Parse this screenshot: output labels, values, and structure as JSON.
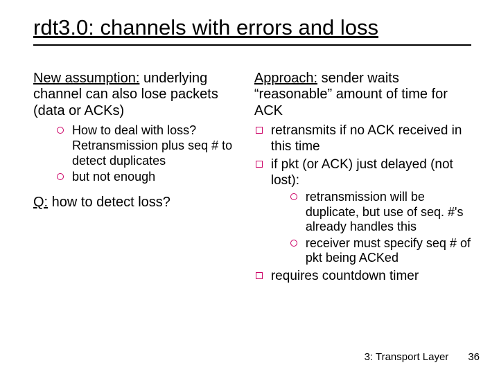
{
  "title": "rdt3.0: channels with errors and loss",
  "left": {
    "assumption_label": "New assumption:",
    "assumption_body": " underlying channel can also lose packets (data or ACKs)",
    "sub_items": [
      "How to deal with loss? Retransmission plus seq # to detect duplicates",
      "but not enough"
    ],
    "question_label": "Q:",
    "question_body": " how to detect loss?"
  },
  "right": {
    "approach_label": "Approach:",
    "approach_body": " sender waits “reasonable” amount of time for ACK",
    "bullets": [
      {
        "text": "retransmits if no ACK received in this time"
      },
      {
        "text": "if pkt (or ACK) just delayed (not lost):",
        "sub": [
          "retransmission will be duplicate, but use of seq. #'s already handles this",
          "receiver must specify seq # of pkt being ACKed"
        ]
      },
      {
        "text": "requires countdown timer"
      }
    ]
  },
  "footer": {
    "section": "3: Transport Layer",
    "page": "36"
  },
  "colors": {
    "bullet_outline": "#cc0066",
    "text": "#000000",
    "background": "#ffffff"
  }
}
